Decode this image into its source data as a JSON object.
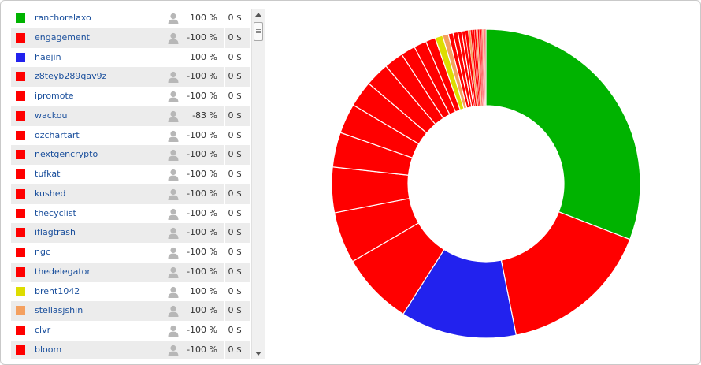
{
  "list": {
    "rows": [
      {
        "name": "ranchorelaxo",
        "color": "#00b300",
        "has_avatar": true,
        "percent": "100 %",
        "usd": "0 $"
      },
      {
        "name": "engagement",
        "color": "#ff0000",
        "has_avatar": true,
        "percent": "-100 %",
        "usd": "0 $"
      },
      {
        "name": "haejin",
        "color": "#2222ee",
        "has_avatar": false,
        "percent": "100 %",
        "usd": "0 $"
      },
      {
        "name": "z8teyb289qav9z",
        "color": "#ff0000",
        "has_avatar": true,
        "percent": "-100 %",
        "usd": "0 $"
      },
      {
        "name": "ipromote",
        "color": "#ff0000",
        "has_avatar": true,
        "percent": "-100 %",
        "usd": "0 $"
      },
      {
        "name": "wackou",
        "color": "#ff0000",
        "has_avatar": true,
        "percent": "-83 %",
        "usd": "0 $"
      },
      {
        "name": "ozchartart",
        "color": "#ff0000",
        "has_avatar": true,
        "percent": "-100 %",
        "usd": "0 $"
      },
      {
        "name": "nextgencrypto",
        "color": "#ff0000",
        "has_avatar": true,
        "percent": "-100 %",
        "usd": "0 $"
      },
      {
        "name": "tufkat",
        "color": "#ff0000",
        "has_avatar": true,
        "percent": "-100 %",
        "usd": "0 $"
      },
      {
        "name": "kushed",
        "color": "#ff0000",
        "has_avatar": true,
        "percent": "-100 %",
        "usd": "0 $"
      },
      {
        "name": "thecyclist",
        "color": "#ff0000",
        "has_avatar": true,
        "percent": "-100 %",
        "usd": "0 $"
      },
      {
        "name": "iflagtrash",
        "color": "#ff0000",
        "has_avatar": true,
        "percent": "-100 %",
        "usd": "0 $"
      },
      {
        "name": "ngc",
        "color": "#ff0000",
        "has_avatar": true,
        "percent": "-100 %",
        "usd": "0 $"
      },
      {
        "name": "thedelegator",
        "color": "#ff0000",
        "has_avatar": true,
        "percent": "-100 %",
        "usd": "0 $"
      },
      {
        "name": "brent1042",
        "color": "#dddd00",
        "has_avatar": true,
        "percent": "100 %",
        "usd": "0 $"
      },
      {
        "name": "stellasjshin",
        "color": "#f4a060",
        "has_avatar": true,
        "percent": "100 %",
        "usd": "0 $"
      },
      {
        "name": "clvr",
        "color": "#ff0000",
        "has_avatar": true,
        "percent": "-100 %",
        "usd": "0 $"
      },
      {
        "name": "bloom",
        "color": "#ff0000",
        "has_avatar": true,
        "percent": "-100 %",
        "usd": "0 $"
      }
    ]
  },
  "icons": {
    "user": "user-avatar-icon",
    "scroll_up": "scroll-up-arrow-icon",
    "scroll_down": "scroll-down-arrow-icon"
  },
  "chart_data": {
    "type": "pie",
    "donut": true,
    "title": "",
    "slices": [
      {
        "label": "ranchorelaxo",
        "value": 30.5,
        "color": "#00b300"
      },
      {
        "label": "engagement",
        "value": 15.8,
        "color": "#ff0000"
      },
      {
        "label": "haejin",
        "value": 12.0,
        "color": "#2222ee"
      },
      {
        "label": "z8teyb289qav9z",
        "value": 7.5,
        "color": "#ff0000"
      },
      {
        "label": "ipromote",
        "value": 5.3,
        "color": "#ff0000"
      },
      {
        "label": "wackou",
        "value": 4.7,
        "color": "#ff0000"
      },
      {
        "label": "ozchartart",
        "value": 3.6,
        "color": "#ff0000"
      },
      {
        "label": "nextgencrypto",
        "value": 3.1,
        "color": "#ff0000"
      },
      {
        "label": "tufkat",
        "value": 2.7,
        "color": "#ff0000"
      },
      {
        "label": "kushed",
        "value": 2.5,
        "color": "#ff0000"
      },
      {
        "label": "thecyclist",
        "value": 2.0,
        "color": "#ff0000"
      },
      {
        "label": "iflagtrash",
        "value": 1.5,
        "color": "#ff0000"
      },
      {
        "label": "ngc",
        "value": 1.3,
        "color": "#ff0000"
      },
      {
        "label": "thedelegator",
        "value": 1.0,
        "color": "#ff0000"
      },
      {
        "label": "brent1042",
        "value": 0.8,
        "color": "#dddd00"
      },
      {
        "label": "stellasjshin",
        "value": 0.6,
        "color": "#f4a060"
      },
      {
        "label": "clvr",
        "value": 0.5,
        "color": "#ff0000"
      },
      {
        "label": "bloom",
        "value": 0.5,
        "color": "#ff0000"
      },
      {
        "value": 0.4,
        "color": "#ff0000"
      },
      {
        "value": 0.35,
        "color": "#ff0000"
      },
      {
        "value": 0.3,
        "color": "#ff0000"
      },
      {
        "value": 0.25,
        "color": "#f4a060"
      },
      {
        "value": 0.2,
        "color": "#ff0000"
      },
      {
        "value": 0.2,
        "color": "#ff0000"
      },
      {
        "value": 0.18,
        "color": "#ff0000"
      },
      {
        "value": 0.15,
        "color": "#f4a060"
      },
      {
        "value": 0.15,
        "color": "#ff0000"
      },
      {
        "value": 0.12,
        "color": "#ff0000"
      },
      {
        "value": 0.12,
        "color": "#ff0000"
      },
      {
        "value": 0.1,
        "color": "#ff0000"
      },
      {
        "value": 0.1,
        "color": "#f4a060"
      },
      {
        "value": 0.08,
        "color": "#ff0000"
      },
      {
        "value": 0.08,
        "color": "#ff0000"
      },
      {
        "value": 0.06,
        "color": "#ff0000"
      },
      {
        "value": 0.05,
        "color": "#ff0000"
      }
    ]
  }
}
